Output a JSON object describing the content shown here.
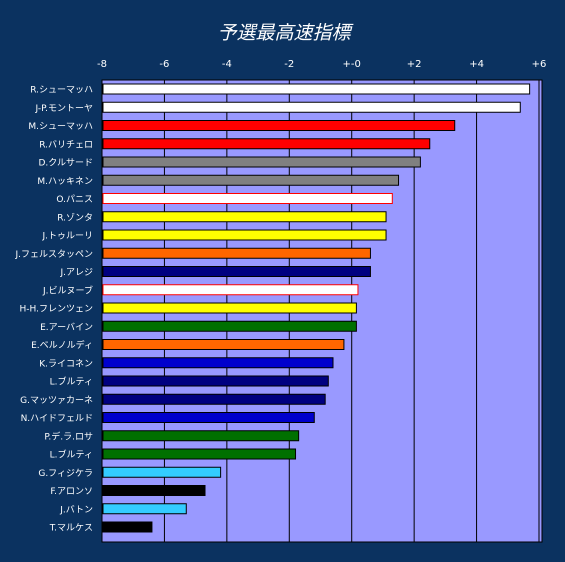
{
  "chart_data": {
    "type": "bar",
    "orientation": "horizontal",
    "title": "予選最高速指標",
    "xlim": [
      -8,
      6
    ],
    "tick_values": [
      -8,
      -6,
      -4,
      -2,
      0,
      2,
      4,
      6
    ],
    "tick_labels": [
      "-8",
      "-6",
      "-4",
      "-2",
      "+-0",
      "+2",
      "+4",
      "+6"
    ],
    "grid": "vertical",
    "colors": {
      "page_background": "#0b3260",
      "plot_background": "#9999ff",
      "text": "#ffffff",
      "gridline": "#000000"
    },
    "drivers": [
      {
        "label": "R.シューマッハ",
        "value": 5.7,
        "fill": "#ffffff",
        "stroke": "#000000"
      },
      {
        "label": "J-P.モントーヤ",
        "value": 5.4,
        "fill": "#ffffff",
        "stroke": "#000000"
      },
      {
        "label": "M.シューマッハ",
        "value": 3.3,
        "fill": "#ff0000",
        "stroke": "#000000"
      },
      {
        "label": "R.バリチェロ",
        "value": 2.5,
        "fill": "#ff0000",
        "stroke": "#000000"
      },
      {
        "label": "D.クルサード",
        "value": 2.2,
        "fill": "#808080",
        "stroke": "#000000"
      },
      {
        "label": "M.ハッキネン",
        "value": 1.5,
        "fill": "#808080",
        "stroke": "#000000"
      },
      {
        "label": "O.パニス",
        "value": 1.3,
        "fill": "#ffffff",
        "stroke": "#ff0000"
      },
      {
        "label": "R.ゾンタ",
        "value": 1.1,
        "fill": "#ffff00",
        "stroke": "#000000"
      },
      {
        "label": "J.トゥルーリ",
        "value": 1.1,
        "fill": "#ffff00",
        "stroke": "#000000"
      },
      {
        "label": "J.フェルスタッペン",
        "value": 0.6,
        "fill": "#ff6600",
        "stroke": "#000000"
      },
      {
        "label": "J.アレジ",
        "value": 0.6,
        "fill": "#000080",
        "stroke": "#000000"
      },
      {
        "label": "J.ビルヌーブ",
        "value": 0.2,
        "fill": "#ffffff",
        "stroke": "#ff0000"
      },
      {
        "label": "H-H.フレンツェン",
        "value": 0.15,
        "fill": "#ffff00",
        "stroke": "#000000"
      },
      {
        "label": "E.アーバイン",
        "value": 0.15,
        "fill": "#007000",
        "stroke": "#000000"
      },
      {
        "label": "E.ベルノルディ",
        "value": -0.25,
        "fill": "#ff6600",
        "stroke": "#000000"
      },
      {
        "label": "K.ライコネン",
        "value": -0.6,
        "fill": "#0000cc",
        "stroke": "#000000"
      },
      {
        "label": "L.ブルティ",
        "value": -0.75,
        "fill": "#000080",
        "stroke": "#000000"
      },
      {
        "label": "G.マッツァカーネ",
        "value": -0.85,
        "fill": "#000080",
        "stroke": "#000000"
      },
      {
        "label": "N.ハイドフェルド",
        "value": -1.2,
        "fill": "#0000cc",
        "stroke": "#000000"
      },
      {
        "label": "P.デ.ラ.ロサ",
        "value": -1.7,
        "fill": "#007000",
        "stroke": "#000000"
      },
      {
        "label": "L.ブルティ",
        "value": -1.8,
        "fill": "#007000",
        "stroke": "#000000"
      },
      {
        "label": "G.フィジケラ",
        "value": -4.2,
        "fill": "#33ccff",
        "stroke": "#000000"
      },
      {
        "label": "F.アロンソ",
        "value": -4.7,
        "fill": "#000000",
        "stroke": "#000000"
      },
      {
        "label": "J.バトン",
        "value": -5.3,
        "fill": "#33ccff",
        "stroke": "#000000"
      },
      {
        "label": "T.マルケス",
        "value": -6.4,
        "fill": "#000000",
        "stroke": "#000000"
      }
    ]
  }
}
